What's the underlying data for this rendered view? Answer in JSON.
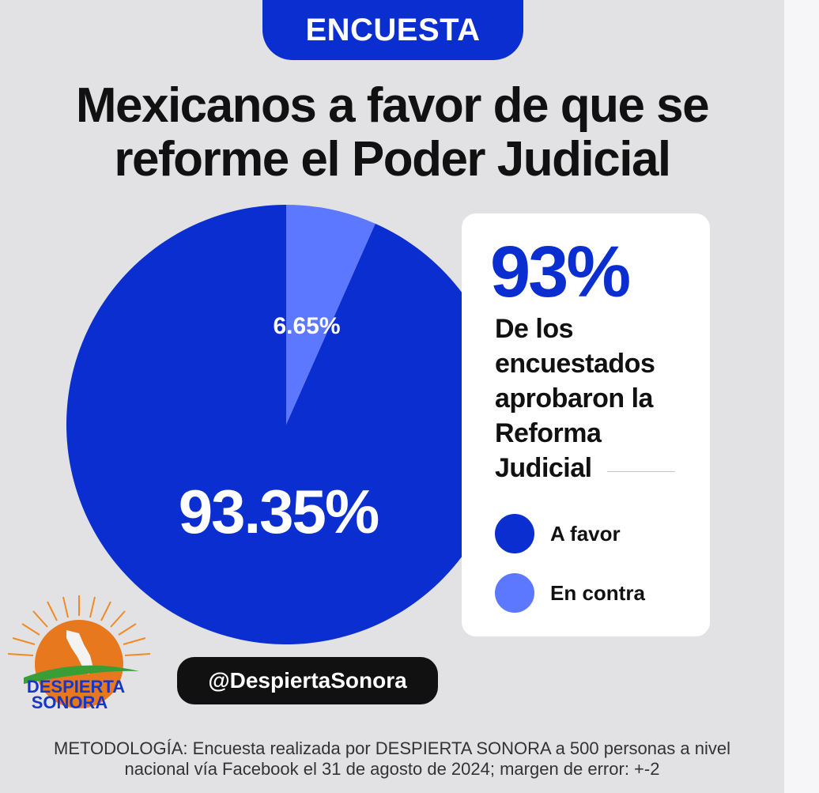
{
  "header": {
    "badge": "ENCUESTA"
  },
  "title": {
    "line1": "Mexicanos a favor de que se",
    "line2": "reforme el Poder Judicial"
  },
  "card": {
    "headline": "93%",
    "description_lines": [
      "De los",
      "encuestados",
      "aprobaron la",
      "Reforma",
      "Judicial"
    ]
  },
  "chart_data": {
    "type": "pie",
    "slices": [
      {
        "label": "A favor",
        "value": 93.35,
        "value_label": "93.35%",
        "color": "#0a2ed0"
      },
      {
        "label": "En contra",
        "value": 6.65,
        "value_label": "6.65%",
        "color": "#5b78ff"
      }
    ],
    "legend": [
      "A favor",
      "En contra"
    ],
    "legend_position": "right"
  },
  "social": {
    "handle": "@DespiertaSonora"
  },
  "logo": {
    "line1": "DESPIERTA",
    "line2": "SONORA"
  },
  "footer": {
    "line1": "METODOLOGÍA: Encuesta realizada por DESPIERTA SONORA a 500 personas a nivel",
    "line2": "nacional vía Facebook el 31 de agosto de 2024; margen de error: +-2"
  },
  "colors": {
    "accent": "#0a2ed0",
    "accent_light": "#5b78ff",
    "background": "#e2e2e4"
  }
}
